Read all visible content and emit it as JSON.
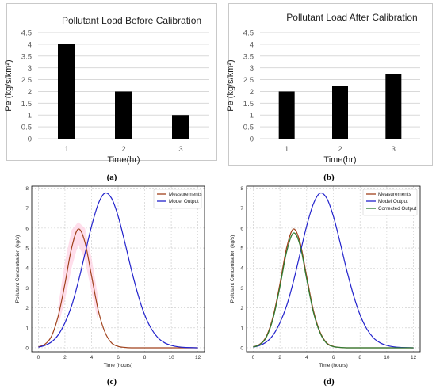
{
  "colors": {
    "bar": "#000000",
    "grid": "#d9d9d9",
    "measurements": "#a0421c",
    "model_output": "#2222cc",
    "corrected_output": "#2e7d32",
    "shade": "#ffd6e6"
  },
  "captions": [
    "(a)",
    "(b)",
    "(c)",
    "(d)"
  ],
  "chart_data": [
    {
      "type": "bar",
      "title": "Pollutant Load Before Calibration",
      "xlabel": "Time(hr)",
      "ylabel": "Pe (kg/s/km²)",
      "categories": [
        "1",
        "2",
        "3"
      ],
      "values": [
        4,
        2,
        1
      ],
      "ylim": [
        0,
        4.5
      ],
      "yticks": [
        "0",
        "0.5",
        "1",
        "1.5",
        "2",
        "2.5",
        "3",
        "3.5",
        "4",
        "4.5"
      ],
      "grid": true
    },
    {
      "type": "bar",
      "title": "Pollutant Load After Calibration",
      "xlabel": "Time(hr)",
      "ylabel": "Pe (kg/s/km²)",
      "categories": [
        "1",
        "2",
        "3"
      ],
      "values": [
        2,
        2.25,
        2.75
      ],
      "ylim": [
        0,
        4.5
      ],
      "yticks": [
        "0",
        "0.5",
        "1",
        "1.5",
        "2",
        "2.5",
        "3",
        "3.5",
        "4",
        "4.5"
      ],
      "grid": true
    },
    {
      "type": "line",
      "xlabel": "Time (hours)",
      "ylabel": "Pollutant Concentration (kg/s)",
      "xlim": [
        -0.5,
        12.5
      ],
      "ylim": [
        -0.2,
        8.1
      ],
      "xticks": [
        "0",
        "2",
        "4",
        "6",
        "8",
        "10",
        "12"
      ],
      "yticks": [
        "0",
        "1",
        "2",
        "3",
        "4",
        "5",
        "6",
        "7",
        "8"
      ],
      "grid": true,
      "legend": "top-right",
      "series": [
        {
          "name": "Measurements",
          "color": "#a0421c",
          "x": [
            0,
            0.5,
            1,
            1.5,
            2,
            2.5,
            3,
            3.5,
            4,
            4.5,
            5,
            5.5,
            6,
            6.5,
            7,
            8,
            9,
            10,
            11,
            12
          ],
          "y": [
            0.05,
            0.18,
            0.6,
            1.6,
            3.2,
            5.0,
            5.95,
            5.3,
            3.6,
            1.9,
            0.8,
            0.25,
            0.07,
            0.02,
            0,
            0,
            0,
            0,
            0,
            0
          ]
        },
        {
          "name": "Model Output",
          "color": "#2222cc",
          "x": [
            0,
            0.5,
            1,
            1.5,
            2,
            2.5,
            3,
            3.5,
            4,
            4.5,
            5,
            5.5,
            6,
            6.5,
            7,
            7.5,
            8,
            8.5,
            9,
            9.5,
            10,
            10.5,
            11,
            12
          ],
          "y": [
            0.03,
            0.12,
            0.3,
            0.65,
            1.25,
            2.1,
            3.3,
            4.7,
            6.1,
            7.2,
            7.75,
            7.5,
            6.6,
            5.3,
            3.9,
            2.65,
            1.65,
            0.95,
            0.5,
            0.25,
            0.12,
            0.05,
            0.02,
            0
          ]
        }
      ],
      "shaded_band": {
        "x": [
          1.5,
          2,
          2.5,
          3,
          3.5,
          4,
          4.5
        ],
        "low": [
          1.1,
          2.4,
          4.0,
          5.2,
          4.4,
          2.8,
          1.3
        ],
        "high": [
          2.1,
          4.3,
          5.9,
          6.3,
          6.0,
          4.5,
          2.5
        ]
      }
    },
    {
      "type": "line",
      "xlabel": "Time (hours)",
      "ylabel": "Pollutant Concentration (kg/s)",
      "xlim": [
        -0.5,
        12.5
      ],
      "ylim": [
        -0.2,
        8.1
      ],
      "xticks": [
        "0",
        "2",
        "4",
        "6",
        "8",
        "10",
        "12"
      ],
      "yticks": [
        "0",
        "1",
        "2",
        "3",
        "4",
        "5",
        "6",
        "7",
        "8"
      ],
      "grid": true,
      "legend": "top-right",
      "series": [
        {
          "name": "Measurements",
          "color": "#a0421c",
          "x": [
            0,
            0.5,
            1,
            1.5,
            2,
            2.5,
            3,
            3.5,
            4,
            4.5,
            5,
            5.5,
            6,
            6.5,
            7,
            8,
            9,
            10,
            11,
            12
          ],
          "y": [
            0.05,
            0.18,
            0.6,
            1.6,
            3.2,
            5.0,
            5.95,
            5.3,
            3.6,
            1.9,
            0.8,
            0.25,
            0.07,
            0.02,
            0,
            0,
            0,
            0,
            0,
            0
          ]
        },
        {
          "name": "Model Output",
          "color": "#2222cc",
          "x": [
            0,
            0.5,
            1,
            1.5,
            2,
            2.5,
            3,
            3.5,
            4,
            4.5,
            5,
            5.5,
            6,
            6.5,
            7,
            7.5,
            8,
            8.5,
            9,
            9.5,
            10,
            10.5,
            11,
            12
          ],
          "y": [
            0.03,
            0.12,
            0.3,
            0.65,
            1.25,
            2.1,
            3.3,
            4.7,
            6.1,
            7.2,
            7.75,
            7.5,
            6.6,
            5.3,
            3.9,
            2.65,
            1.65,
            0.95,
            0.5,
            0.25,
            0.12,
            0.05,
            0.02,
            0
          ]
        },
        {
          "name": "Corrected Output",
          "color": "#2e7d32",
          "x": [
            0,
            0.5,
            1,
            1.5,
            2,
            2.5,
            3,
            3.5,
            4,
            4.5,
            5,
            5.5,
            6,
            6.5,
            7,
            8,
            9,
            10,
            11,
            12
          ],
          "y": [
            0.04,
            0.16,
            0.55,
            1.5,
            3.05,
            4.8,
            5.75,
            5.15,
            3.45,
            1.8,
            0.75,
            0.22,
            0.06,
            0.02,
            0,
            0,
            0,
            0,
            0,
            0
          ]
        }
      ]
    }
  ]
}
